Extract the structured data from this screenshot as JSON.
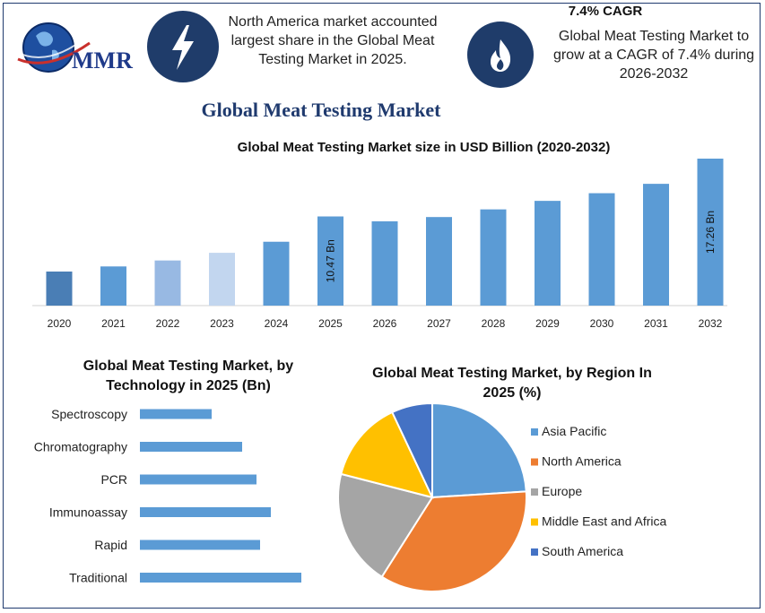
{
  "header": {
    "brand": "MMR",
    "insight_left": "North America market accounted largest share in the Global Meat Testing Market in 2025.",
    "cagr_title": "7.4% CAGR",
    "insight_right": "Global Meat Testing Market to grow at a CAGR of 7.4% during 2026-2032"
  },
  "main_title": "Global Meat Testing Market",
  "colors": {
    "navy": "#1f3c6a",
    "bar": "#5b9bd5",
    "orange": "#ed7d31",
    "gray": "#a5a5a5",
    "yellow": "#ffc000",
    "dark_blue": "#4472c4"
  },
  "icons": {
    "left": "lightning-icon",
    "right": "flame-icon",
    "logo": "globe-icon"
  },
  "chart_data": [
    {
      "type": "bar",
      "title": "Global Meat Testing Market size in USD Billion (2020-2032)",
      "categories": [
        "2020",
        "2021",
        "2022",
        "2023",
        "2024",
        "2025",
        "2026",
        "2027",
        "2028",
        "2029",
        "2030",
        "2031",
        "2032"
      ],
      "values": [
        4.0,
        4.6,
        5.3,
        6.2,
        7.5,
        10.47,
        9.9,
        10.4,
        11.3,
        12.3,
        13.2,
        14.3,
        17.26
      ],
      "bar_colors": [
        "#4a7eb5",
        "#5b9bd5",
        "#98b9e3",
        "#c2d6ef",
        "#5b9bd5",
        "#5b9bd5",
        "#5b9bd5",
        "#5b9bd5",
        "#5b9bd5",
        "#5b9bd5",
        "#5b9bd5",
        "#5b9bd5",
        "#5b9bd5"
      ],
      "data_labels": {
        "2025": "10.47 Bn",
        "2032": "17.26 Bn"
      },
      "ylim": [
        0,
        17.26
      ]
    },
    {
      "type": "bar",
      "orientation": "horizontal",
      "title": "Global Meat Testing Market, by Technology in 2025 (Bn)",
      "categories": [
        "Spectroscopy",
        "Chromatography",
        "PCR",
        "Immunoassay",
        "Rapid",
        "Traditional"
      ],
      "values": [
        0.8,
        1.14,
        1.3,
        1.46,
        1.34,
        1.8
      ],
      "xlim": [
        0,
        2.0
      ]
    },
    {
      "type": "pie",
      "title": "Global Meat Testing Market, by Region In 2025 (%)",
      "labels": [
        "Asia Pacific",
        "North America",
        "Europe",
        "Middle East and Africa",
        "South America"
      ],
      "values": [
        24,
        35,
        20,
        14,
        7
      ],
      "colors": [
        "#5b9bd5",
        "#ed7d31",
        "#a5a5a5",
        "#ffc000",
        "#4472c4"
      ],
      "legend": "right"
    }
  ]
}
